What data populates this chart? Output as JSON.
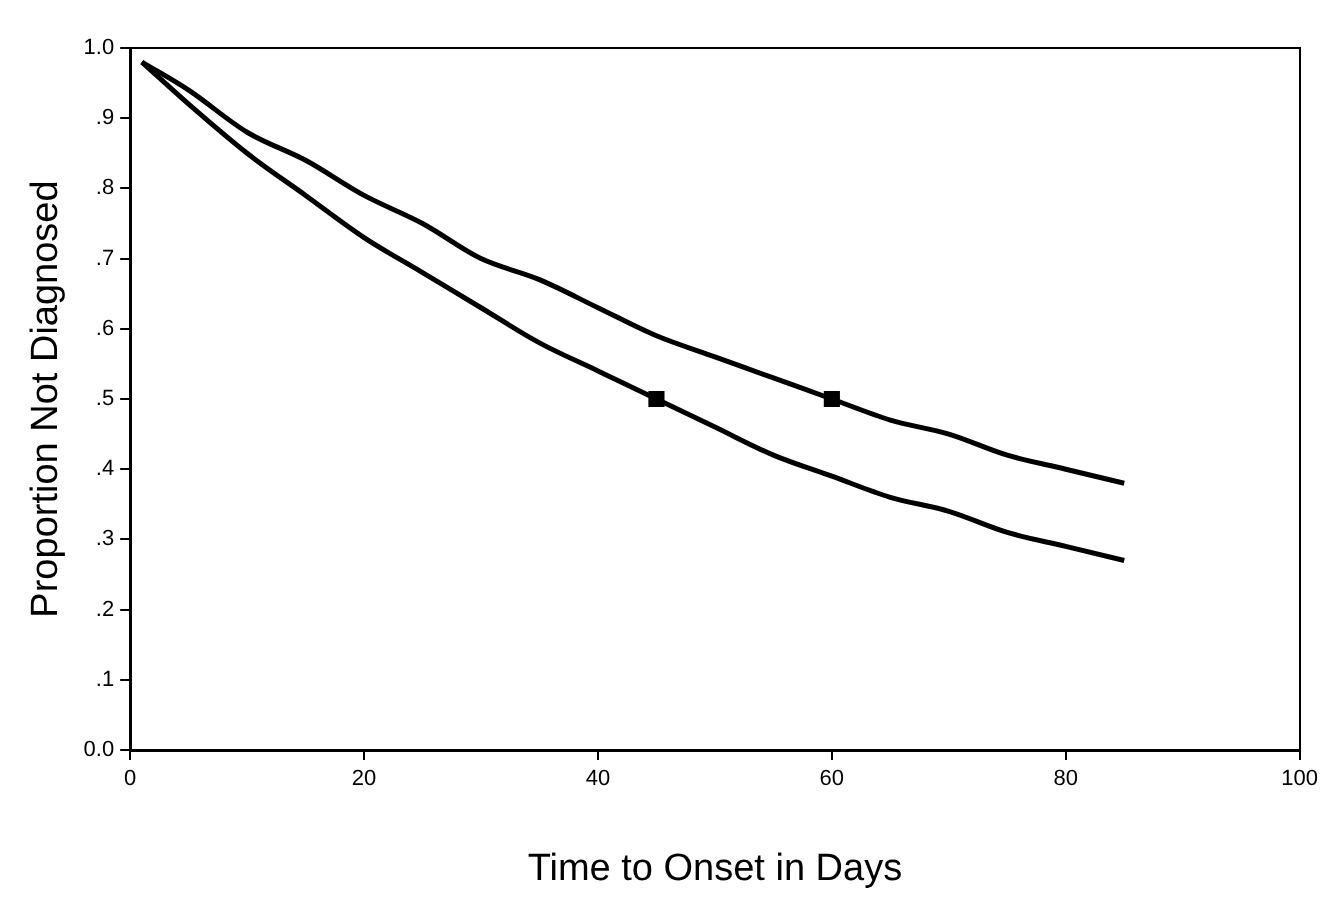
{
  "chart_data": {
    "type": "line",
    "xlabel": "Time to Onset in Days",
    "ylabel": "Proportion Not Diagnosed",
    "xlim": [
      0,
      100
    ],
    "xticks": [
      0,
      20,
      40,
      60,
      80,
      100
    ],
    "ylim": [
      0,
      1
    ],
    "yticks": [
      {
        "value": 0,
        "label": "0.0"
      },
      {
        "value": 0.1,
        "label": ".1"
      },
      {
        "value": 0.2,
        "label": ".2"
      },
      {
        "value": 0.3,
        "label": ".3"
      },
      {
        "value": 0.4,
        "label": ".4"
      },
      {
        "value": 0.5,
        "label": ".5"
      },
      {
        "value": 0.6,
        "label": ".6"
      },
      {
        "value": 0.7,
        "label": ".7"
      },
      {
        "value": 0.8,
        "label": ".8"
      },
      {
        "value": 0.9,
        "label": ".9"
      },
      {
        "value": 1,
        "label": "1.0"
      }
    ],
    "grid": false,
    "legend": false,
    "line_style": "solid",
    "series": [
      {
        "color": "#000000",
        "marker": "none",
        "x": [
          1,
          5,
          10,
          15,
          20,
          25,
          30,
          35,
          40,
          45,
          50,
          55,
          60,
          65,
          70,
          75,
          80,
          85
        ],
        "values": [
          0.98,
          0.94,
          0.88,
          0.84,
          0.79,
          0.75,
          0.7,
          0.67,
          0.63,
          0.59,
          0.56,
          0.53,
          0.5,
          0.47,
          0.45,
          0.42,
          0.4,
          0.38
        ]
      },
      {
        "color": "#000000",
        "marker": "none",
        "x": [
          1,
          5,
          10,
          15,
          20,
          25,
          30,
          35,
          40,
          45,
          50,
          55,
          60,
          65,
          70,
          75,
          80,
          85
        ],
        "values": [
          0.98,
          0.92,
          0.85,
          0.79,
          0.73,
          0.68,
          0.63,
          0.58,
          0.54,
          0.5,
          0.46,
          0.42,
          0.39,
          0.36,
          0.34,
          0.31,
          0.29,
          0.27
        ]
      },
      {
        "type": "scatter",
        "color": "#000000",
        "marker": "square",
        "x": [
          45,
          60
        ],
        "values": [
          0.5,
          0.5
        ]
      }
    ]
  }
}
